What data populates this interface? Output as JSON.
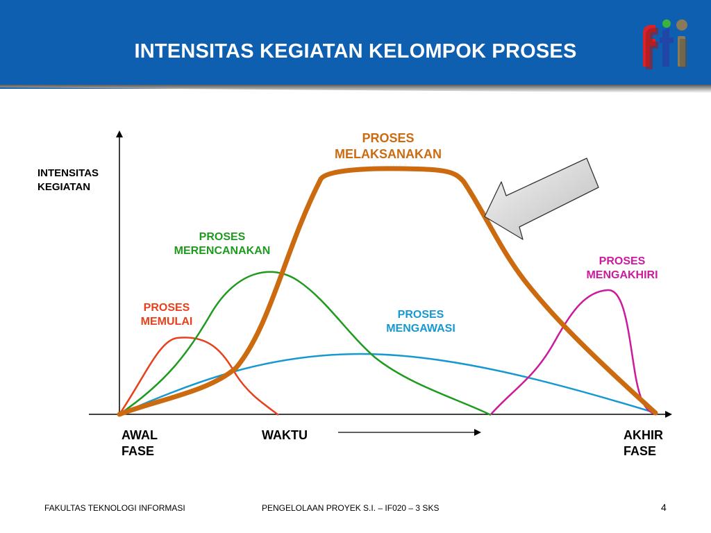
{
  "title": "INTENSITAS KEGIATAN KELOMPOK PROSES",
  "logo_text": "fti",
  "y_axis_label": [
    "INTENSITAS",
    "KEGIATAN"
  ],
  "x_labels": {
    "start": [
      "AWAL",
      "FASE"
    ],
    "middle": "WAKTU",
    "end": [
      "AKHIR",
      "FASE"
    ]
  },
  "processes": [
    {
      "id": "memulai",
      "lines": [
        "PROSES",
        "MEMULAI"
      ],
      "color": "#e8401c"
    },
    {
      "id": "merencanakan",
      "lines": [
        "PROSES",
        "MERENCANAKAN"
      ],
      "color": "#1e9a1e"
    },
    {
      "id": "melaksanakan",
      "lines": [
        "PROSES",
        "MELAKSANAKAN"
      ],
      "color": "#cc6a10"
    },
    {
      "id": "mengawasi",
      "lines": [
        "PROSES",
        "MENGAWASI"
      ],
      "color": "#1798d0"
    },
    {
      "id": "mengakhiri",
      "lines": [
        "PROSES",
        "MENGAKHIRI"
      ],
      "color": "#cc1a9e"
    }
  ],
  "footer": {
    "left": "FAKULTAS TEKNOLOGI INFORMASI",
    "center": "PENGELOLAAN PROYEK S.I. – IF020 – 3 SKS",
    "page": "4"
  }
}
